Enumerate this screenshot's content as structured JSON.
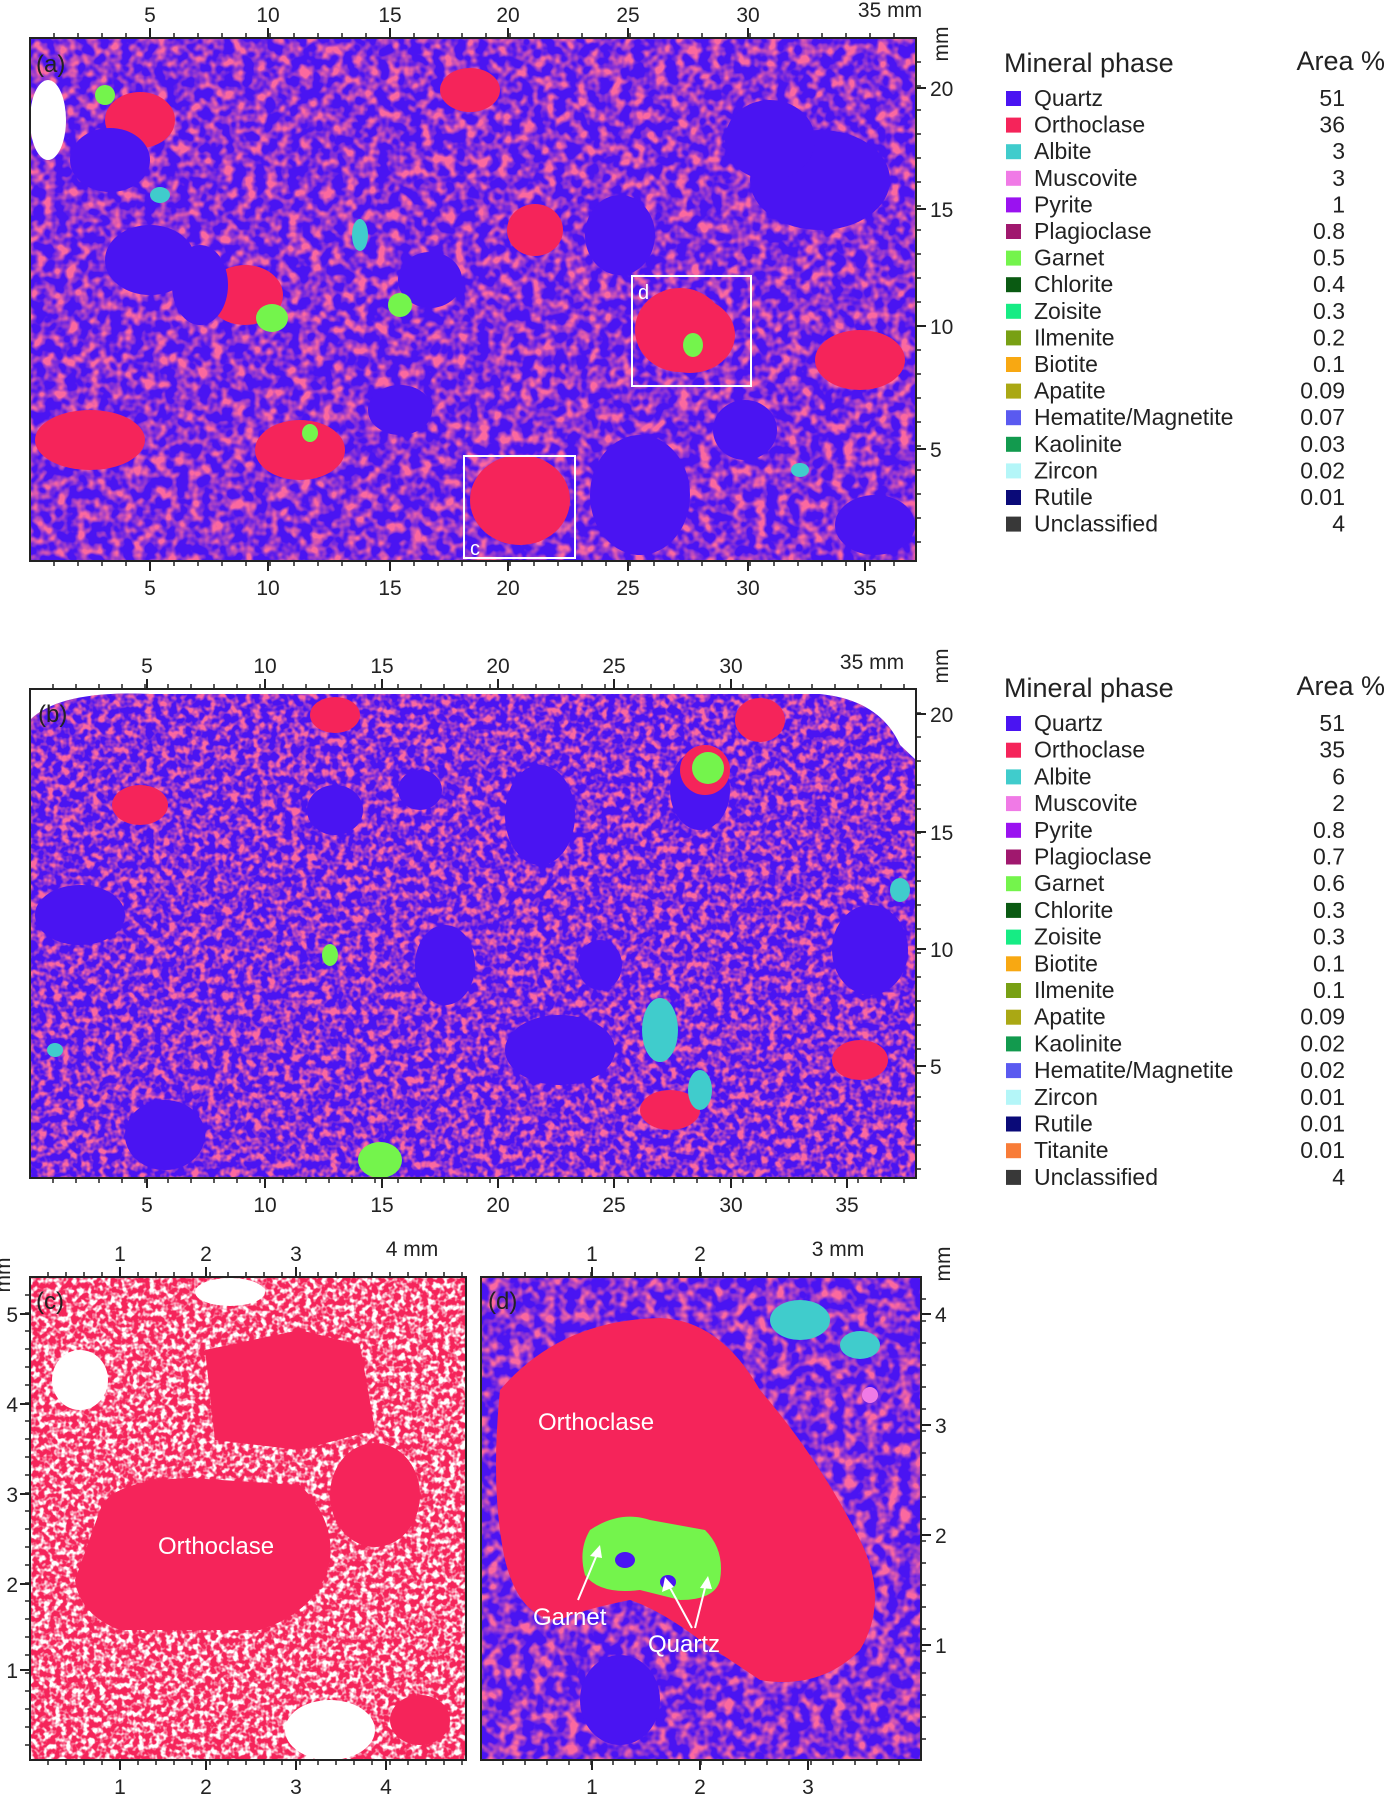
{
  "colors": {
    "quartz": "#4a14f2",
    "orthoclase": "#f5245a",
    "albite": "#40cccc",
    "garnet": "#74f44c",
    "background": "#ffffff"
  },
  "panels": {
    "a": {
      "label": "(a)",
      "unit_x": "35 mm",
      "unit_y": "mm",
      "top_ticks": [
        "5",
        "10",
        "15",
        "20",
        "25",
        "30"
      ],
      "bottom_ticks": [
        "5",
        "10",
        "15",
        "20",
        "25",
        "30",
        "35"
      ],
      "right_ticks": [
        "20",
        "15",
        "10",
        "5"
      ],
      "inset_boxes": [
        {
          "label": "d"
        },
        {
          "label": "c"
        }
      ],
      "legend": {
        "header_phase": "Mineral phase",
        "header_area": "Area %",
        "items": [
          {
            "name": "Quartz",
            "value": "51",
            "color": "#4a14f2"
          },
          {
            "name": "Orthoclase",
            "value": "36",
            "color": "#f5245a"
          },
          {
            "name": "Albite",
            "value": "3",
            "color": "#40cccc"
          },
          {
            "name": "Muscovite",
            "value": "3",
            "color": "#f07ae6"
          },
          {
            "name": "Pyrite",
            "value": "1",
            "color": "#9a12f0"
          },
          {
            "name": "Plagioclase",
            "value": "0.8",
            "color": "#a0186e"
          },
          {
            "name": "Garnet",
            "value": "0.5",
            "color": "#74f44c"
          },
          {
            "name": "Chlorite",
            "value": "0.4",
            "color": "#0a5a12"
          },
          {
            "name": "Zoisite",
            "value": "0.3",
            "color": "#16ec84"
          },
          {
            "name": "Ilmenite",
            "value": "0.2",
            "color": "#78a014"
          },
          {
            "name": "Biotite",
            "value": "0.1",
            "color": "#f8a812"
          },
          {
            "name": "Apatite",
            "value": "0.09",
            "color": "#aaa814"
          },
          {
            "name": "Hematite/Magnetite",
            "value": "0.07",
            "color": "#5a5af0"
          },
          {
            "name": "Kaolinite",
            "value": "0.03",
            "color": "#129a4e"
          },
          {
            "name": "Zircon",
            "value": "0.02",
            "color": "#b4f6f8"
          },
          {
            "name": "Rutile",
            "value": "0.01",
            "color": "#0a0a78"
          },
          {
            "name": "Unclassified",
            "value": "4",
            "color": "#383838"
          }
        ]
      }
    },
    "b": {
      "label": "(b)",
      "unit_x": "35 mm",
      "unit_y": "mm",
      "top_ticks": [
        "5",
        "10",
        "15",
        "20",
        "25",
        "30"
      ],
      "bottom_ticks": [
        "5",
        "10",
        "15",
        "20",
        "25",
        "30",
        "35"
      ],
      "right_ticks": [
        "20",
        "15",
        "10",
        "5"
      ],
      "legend": {
        "header_phase": "Mineral phase",
        "header_area": "Area %",
        "items": [
          {
            "name": "Quartz",
            "value": "51",
            "color": "#4a14f2"
          },
          {
            "name": "Orthoclase",
            "value": "35",
            "color": "#f5245a"
          },
          {
            "name": "Albite",
            "value": "6",
            "color": "#40cccc"
          },
          {
            "name": "Muscovite",
            "value": "2",
            "color": "#f07ae6"
          },
          {
            "name": "Pyrite",
            "value": "0.8",
            "color": "#9a12f0"
          },
          {
            "name": "Plagioclase",
            "value": "0.7",
            "color": "#a0186e"
          },
          {
            "name": "Garnet",
            "value": "0.6",
            "color": "#74f44c"
          },
          {
            "name": "Chlorite",
            "value": "0.3",
            "color": "#0a5a12"
          },
          {
            "name": "Zoisite",
            "value": "0.3",
            "color": "#16ec84"
          },
          {
            "name": "Biotite",
            "value": "0.1",
            "color": "#f8a812"
          },
          {
            "name": "Ilmenite",
            "value": "0.1",
            "color": "#78a014"
          },
          {
            "name": "Apatite",
            "value": "0.09",
            "color": "#aaa814"
          },
          {
            "name": "Kaolinite",
            "value": "0.02",
            "color": "#129a4e"
          },
          {
            "name": "Hematite/Magnetite",
            "value": "0.02",
            "color": "#5a5af0"
          },
          {
            "name": "Zircon",
            "value": "0.01",
            "color": "#b4f6f8"
          },
          {
            "name": "Rutile",
            "value": "0.01",
            "color": "#0a0a78"
          },
          {
            "name": "Titanite",
            "value": "0.01",
            "color": "#f87c38"
          },
          {
            "name": "Unclassified",
            "value": "4",
            "color": "#383838"
          }
        ]
      }
    },
    "c": {
      "label": "(c)",
      "unit_x": "4 mm",
      "unit_y": "mm",
      "top_ticks": [
        "1",
        "2",
        "3"
      ],
      "bottom_ticks": [
        "1",
        "2",
        "3",
        "4"
      ],
      "left_ticks": [
        "5",
        "4",
        "3",
        "2",
        "1"
      ],
      "annotation": "Orthoclase"
    },
    "d": {
      "label": "(d)",
      "unit_x": "3 mm",
      "unit_y": "mm",
      "top_ticks": [
        "1",
        "2"
      ],
      "bottom_ticks": [
        "1",
        "2",
        "3"
      ],
      "right_ticks": [
        "4",
        "3",
        "2",
        "1"
      ],
      "annotation_orthoclase": "Orthoclase",
      "annotation_garnet": "Garnet",
      "annotation_quartz": "Quartz"
    }
  }
}
